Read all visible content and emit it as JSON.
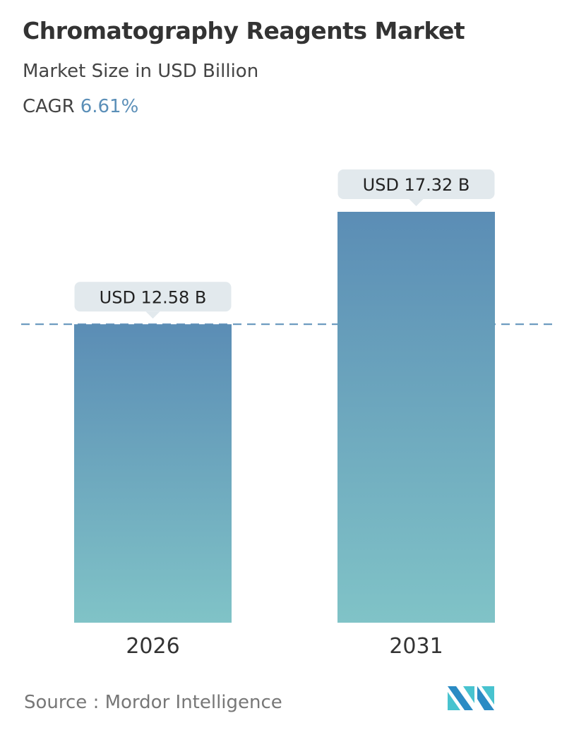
{
  "title": "Chromatography Reagents Market",
  "subtitle": "Market Size in USD Billion",
  "cagr_label": "CAGR",
  "cagr_value": "6.61%",
  "source": "Source :  Mordor Intelligence",
  "logo_text": "MI",
  "colors": {
    "bar_top": "#5b8db5",
    "bar_bottom": "#80c3c7",
    "label_bg": "#e2e9ed",
    "accent": "#5b8fb8"
  },
  "chart_data": {
    "type": "bar",
    "categories": [
      "2026",
      "2031"
    ],
    "values": [
      12.58,
      17.32
    ],
    "data_labels": [
      "USD 12.58 B",
      "USD 17.32 B"
    ],
    "ylim": [
      0,
      17.32
    ],
    "reference_line": 12.58,
    "grid": false
  }
}
